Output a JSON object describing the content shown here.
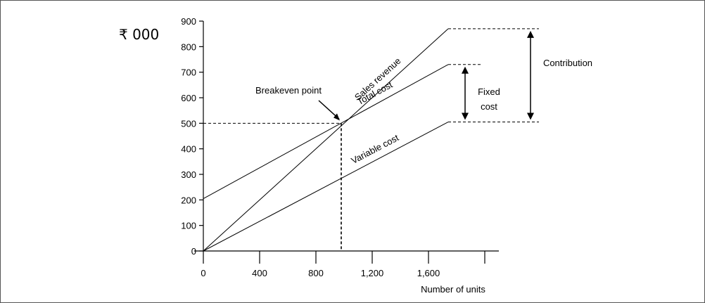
{
  "chart_data": {
    "type": "line",
    "unit_label": "₹ 000",
    "xlabel": "Number of units",
    "ylabel": "",
    "xlim": [
      0,
      2000
    ],
    "ylim": [
      0,
      900
    ],
    "x_ticks": [
      0,
      400,
      800,
      1200,
      1600
    ],
    "x_tick_labels": [
      "0",
      "400",
      "800",
      "1,200",
      "1,600"
    ],
    "y_ticks": [
      0,
      100,
      200,
      300,
      400,
      500,
      600,
      700,
      800,
      900
    ],
    "y_tick_labels": [
      "0",
      "100",
      "200",
      "300",
      "400",
      "500",
      "600",
      "700",
      "800",
      "900"
    ],
    "grid": false,
    "series": [
      {
        "name": "Sales revenue",
        "x": [
          0,
          1740
        ],
        "y": [
          0,
          870
        ]
      },
      {
        "name": "Total cost",
        "x": [
          0,
          1740
        ],
        "y": [
          205,
          730
        ]
      },
      {
        "name": "Variable cost",
        "x": [
          0,
          1740
        ],
        "y": [
          0,
          505
        ]
      }
    ],
    "breakeven": {
      "label": "Breakeven point",
      "x": 980,
      "y": 500
    },
    "annotations": {
      "fixed_cost": "Fixed\ncost",
      "contribution": "Contribution"
    }
  }
}
